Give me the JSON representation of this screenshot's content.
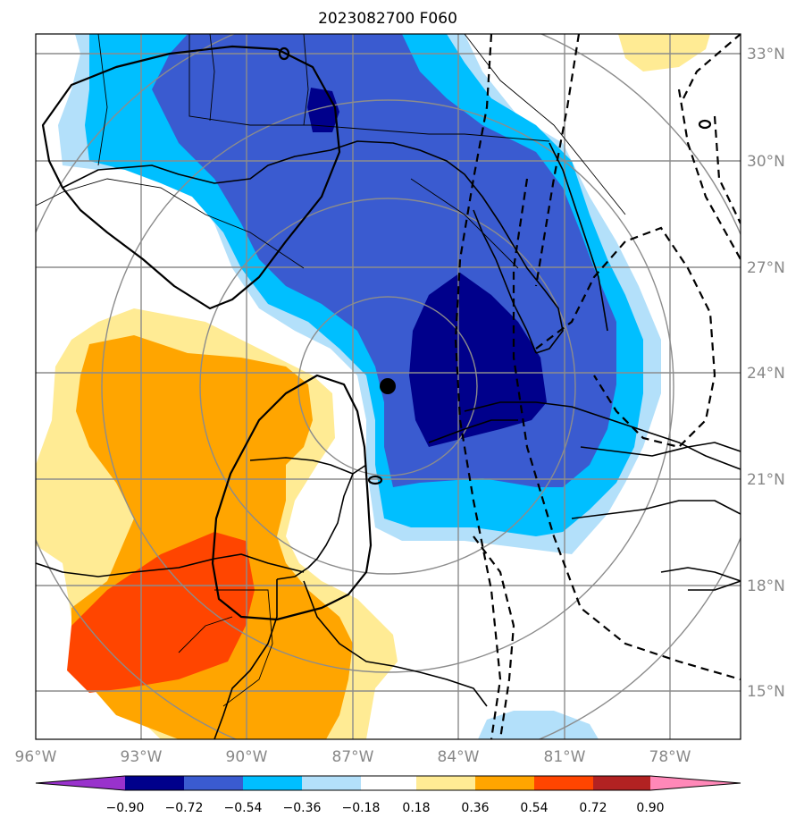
{
  "title": "2023082700 F060",
  "map": {
    "lon_ticks": [
      "96°W",
      "93°W",
      "90°W",
      "87°W",
      "84°W",
      "81°W",
      "78°W"
    ],
    "lat_ticks": [
      "33°N",
      "30°N",
      "27°N",
      "24°N",
      "21°N",
      "18°N",
      "15°N"
    ],
    "storm_center_marker": "black-dot",
    "colors": {
      "deep_blue": "#00008b",
      "royal_blue": "#3a5bd0",
      "sky_blue": "#00bfff",
      "light_blue": "#b3e0fa",
      "light_yellow": "#ffeb94",
      "orange": "#ffa500",
      "red_orange": "#ff4500",
      "gridline": "#8c8c8c"
    }
  },
  "colorbar": {
    "colors": [
      "#9932cc",
      "#00008b",
      "#3a5bd0",
      "#00bfff",
      "#b3e0fa",
      "#ffffff",
      "#ffeb94",
      "#ffa500",
      "#ff4500",
      "#b22222",
      "#ff88b8"
    ],
    "labels": [
      "−0.90",
      "−0.72",
      "−0.54",
      "−0.36",
      "−0.18",
      "0.18",
      "0.36",
      "0.54",
      "0.72",
      "0.90"
    ]
  }
}
